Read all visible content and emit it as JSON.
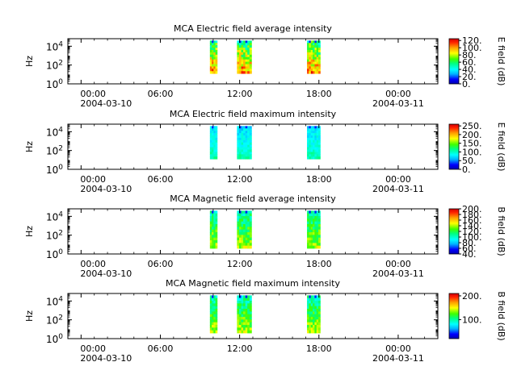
{
  "chart_data": [
    {
      "type": "heatmap",
      "title": "MCA  Electric field average intensity",
      "ylabel": "Hz",
      "colorbar_label": "E field (dB)",
      "colorbar_ticks": [
        "0.",
        "20.",
        "40.",
        "60.",
        "80.",
        "100.",
        "120."
      ],
      "colorbar_range": [
        0,
        125
      ],
      "yticks": [
        {
          "base": "10",
          "exp": "0"
        },
        {
          "base": "10",
          "exp": "2"
        },
        {
          "base": "10",
          "exp": "4"
        }
      ],
      "ylim_log10": [
        0,
        4.8
      ],
      "xlim_hours": [
        -1,
        27
      ],
      "xticks": [
        {
          "time": "00:00",
          "date": "2004-03-10"
        },
        {
          "time": "06:00",
          "date": ""
        },
        {
          "time": "12:00",
          "date": ""
        },
        {
          "time": "18:00",
          "date": ""
        },
        {
          "time": "00:00",
          "date": "2004-03-11"
        }
      ],
      "segments": [
        {
          "start_hour": 9.75,
          "end_hour": 10.3,
          "f_min_log10": 1.1,
          "f_max_log10": 4.6
        },
        {
          "start_hour": 11.8,
          "end_hour": 12.9,
          "f_min_log10": 1.1,
          "f_max_log10": 4.6
        },
        {
          "start_hour": 17.1,
          "end_hour": 18.1,
          "f_min_log10": 1.1,
          "f_max_log10": 4.6
        }
      ],
      "level_range": [
        0.3,
        0.95
      ]
    },
    {
      "type": "heatmap",
      "title": "MCA  Electric field maximum intensity",
      "ylabel": "Hz",
      "colorbar_label": "E field (dB)",
      "colorbar_ticks": [
        "0.",
        "50.",
        "100.",
        "150.",
        "200.",
        "250."
      ],
      "colorbar_range": [
        0,
        260
      ],
      "yticks": [
        {
          "base": "10",
          "exp": "0"
        },
        {
          "base": "10",
          "exp": "2"
        },
        {
          "base": "10",
          "exp": "4"
        }
      ],
      "ylim_log10": [
        0,
        4.8
      ],
      "xlim_hours": [
        -1,
        27
      ],
      "xticks": [
        {
          "time": "00:00",
          "date": "2004-03-10"
        },
        {
          "time": "06:00",
          "date": ""
        },
        {
          "time": "12:00",
          "date": ""
        },
        {
          "time": "18:00",
          "date": ""
        },
        {
          "time": "00:00",
          "date": "2004-03-11"
        }
      ],
      "segments": [
        {
          "start_hour": 9.75,
          "end_hour": 10.3,
          "f_min_log10": 1.1,
          "f_max_log10": 4.6
        },
        {
          "start_hour": 11.8,
          "end_hour": 12.9,
          "f_min_log10": 1.1,
          "f_max_log10": 4.6
        },
        {
          "start_hour": 17.1,
          "end_hour": 18.1,
          "f_min_log10": 1.1,
          "f_max_log10": 4.6
        }
      ],
      "level_range": [
        0.22,
        0.45
      ]
    },
    {
      "type": "heatmap",
      "title": "MCA  Magnetic field average intensity",
      "ylabel": "Hz",
      "colorbar_label": "B field (dB)",
      "colorbar_ticks": [
        "40.",
        "60.",
        "80.",
        "100.",
        "120.",
        "140.",
        "160.",
        "180.",
        "200."
      ],
      "colorbar_range": [
        40,
        200
      ],
      "yticks": [
        {
          "base": "10",
          "exp": "0"
        },
        {
          "base": "10",
          "exp": "2"
        },
        {
          "base": "10",
          "exp": "4"
        }
      ],
      "ylim_log10": [
        0,
        4.8
      ],
      "xlim_hours": [
        -1,
        27
      ],
      "xticks": [
        {
          "time": "00:00",
          "date": "2004-03-10"
        },
        {
          "time": "06:00",
          "date": ""
        },
        {
          "time": "12:00",
          "date": ""
        },
        {
          "time": "18:00",
          "date": ""
        },
        {
          "time": "00:00",
          "date": "2004-03-11"
        }
      ],
      "segments": [
        {
          "start_hour": 9.75,
          "end_hour": 10.3,
          "f_min_log10": 0.6,
          "f_max_log10": 4.6
        },
        {
          "start_hour": 11.8,
          "end_hour": 12.9,
          "f_min_log10": 0.6,
          "f_max_log10": 4.6
        },
        {
          "start_hour": 17.1,
          "end_hour": 18.1,
          "f_min_log10": 0.6,
          "f_max_log10": 4.6
        }
      ],
      "level_range": [
        0.3,
        0.7
      ]
    },
    {
      "type": "heatmap",
      "title": "MCA  Magnetic field maximum intensity",
      "ylabel": "Hz",
      "colorbar_label": "B field (dB)",
      "colorbar_ticks": [
        "100.",
        "200."
      ],
      "colorbar_range": [
        20,
        210
      ],
      "yticks": [
        {
          "base": "10",
          "exp": "0"
        },
        {
          "base": "10",
          "exp": "2"
        },
        {
          "base": "10",
          "exp": "4"
        }
      ],
      "ylim_log10": [
        0,
        4.8
      ],
      "xlim_hours": [
        -1,
        27
      ],
      "xticks": [
        {
          "time": "00:00",
          "date": "2004-03-10"
        },
        {
          "time": "06:00",
          "date": ""
        },
        {
          "time": "12:00",
          "date": ""
        },
        {
          "time": "18:00",
          "date": ""
        },
        {
          "time": "00:00",
          "date": "2004-03-11"
        }
      ],
      "segments": [
        {
          "start_hour": 9.75,
          "end_hour": 10.3,
          "f_min_log10": 0.6,
          "f_max_log10": 4.6
        },
        {
          "start_hour": 11.8,
          "end_hour": 12.9,
          "f_min_log10": 0.6,
          "f_max_log10": 4.6
        },
        {
          "start_hour": 17.1,
          "end_hour": 18.1,
          "f_min_log10": 0.6,
          "f_max_log10": 4.6
        }
      ],
      "level_range": [
        0.3,
        0.7
      ]
    }
  ]
}
